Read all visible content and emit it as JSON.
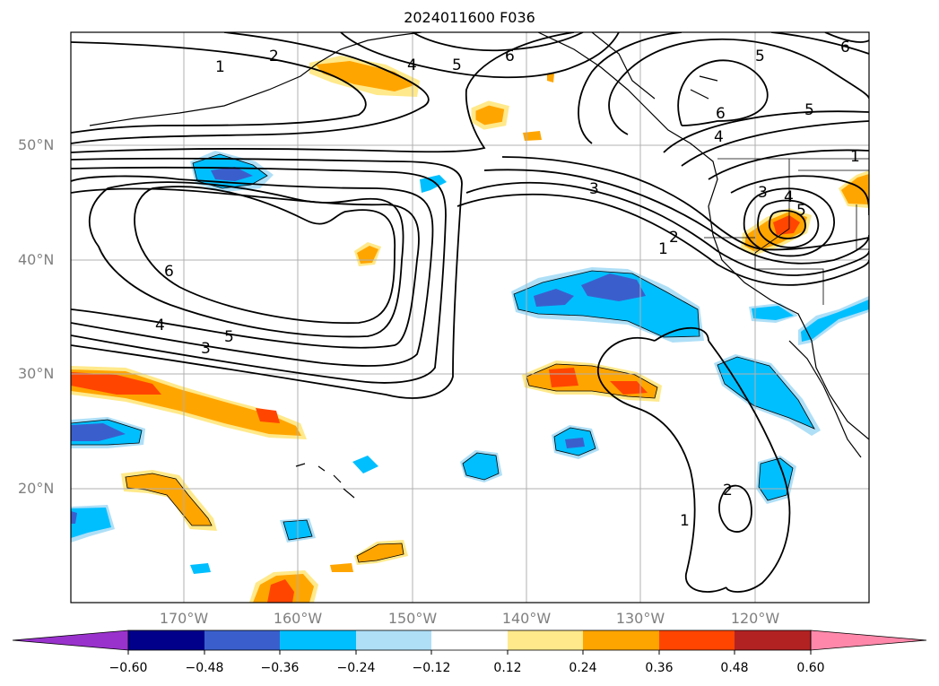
{
  "title": "2024011600 F036",
  "lat_labels": [
    "50°N",
    "40°N",
    "30°N",
    "20°N"
  ],
  "lon_labels": [
    "170°W",
    "160°W",
    "150°W",
    "140°W",
    "130°W",
    "120°W"
  ],
  "colorbar": {
    "ticks": [
      "−0.60",
      "−0.48",
      "−0.36",
      "−0.24",
      "−0.12",
      "0.12",
      "0.24",
      "0.36",
      "0.48",
      "0.60"
    ],
    "colors": [
      "#9932CC",
      "#00008B",
      "#3A5FCD",
      "#00BFFF",
      "#AEDFF7",
      "#FFFFFF",
      "#FFE98A",
      "#FFA500",
      "#FF4500",
      "#B22222",
      "#FF88AA"
    ]
  },
  "contour_labels": [
    "1",
    "2",
    "4",
    "5",
    "6",
    "5",
    "6",
    "6",
    "5",
    "4",
    "3",
    "2",
    "1",
    "1",
    "3",
    "4",
    "5",
    "6",
    "4",
    "5",
    "3",
    "2",
    "1"
  ]
}
